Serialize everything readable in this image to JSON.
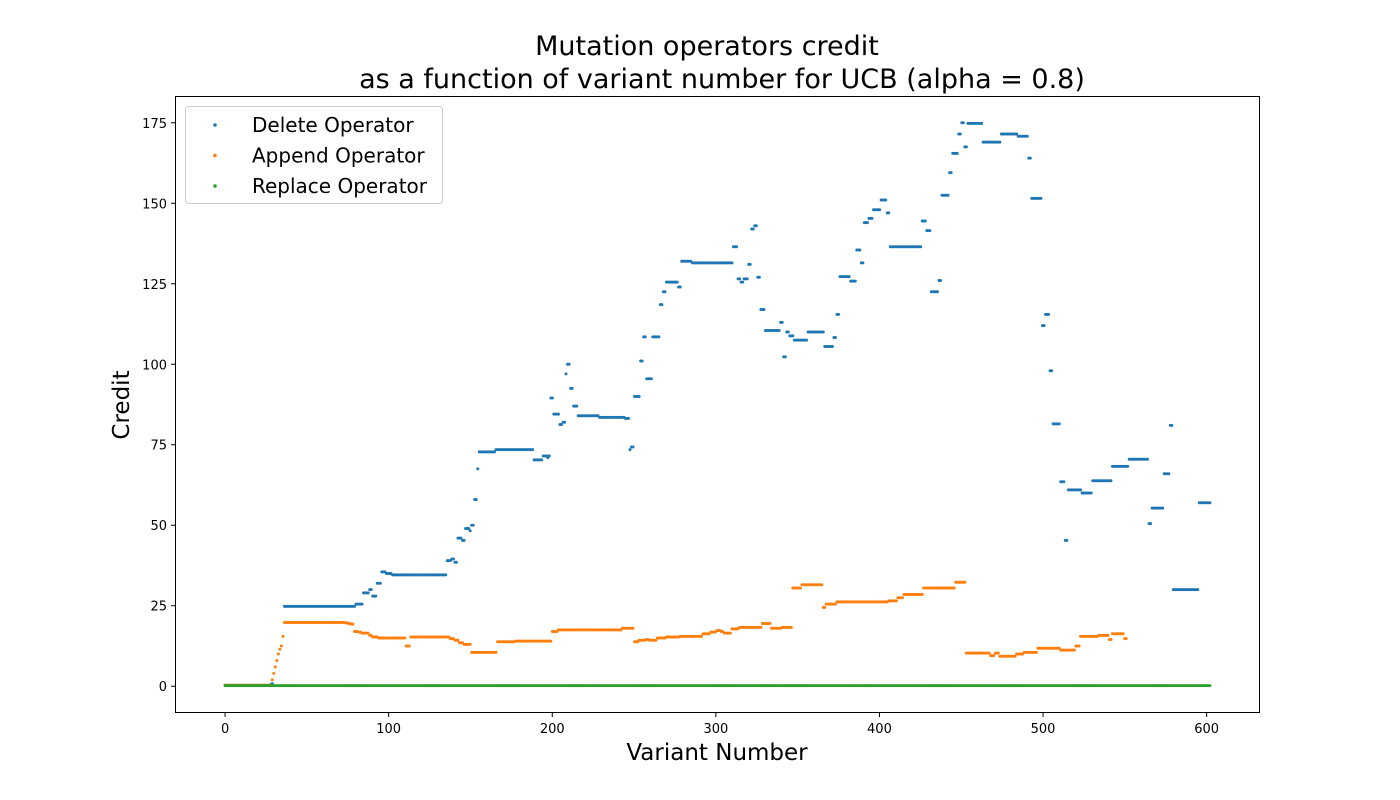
{
  "chart_data": {
    "type": "scatter",
    "title_line1": "Mutation operators credit",
    "title_line2": "as a function of variant number for UCB (alpha = 0.8)",
    "xlabel": "Variant Number",
    "ylabel": "Credit",
    "xlim": [
      -30,
      632
    ],
    "ylim": [
      -8,
      183
    ],
    "xticks": [
      0,
      100,
      200,
      300,
      400,
      500,
      600
    ],
    "yticks": [
      0,
      25,
      50,
      75,
      100,
      125,
      150,
      175
    ],
    "x_range": [
      0,
      602
    ],
    "grid": false,
    "legend_position": "top-left",
    "series": [
      {
        "name": "Delete Operator",
        "color": "#1f77b4",
        "segments": [
          [
            0,
            29,
            0.3
          ],
          [
            30,
            30,
            0.5
          ],
          [
            31,
            31,
            0.8
          ],
          [
            39,
            85,
            24.8
          ],
          [
            86,
            90,
            25.5
          ],
          [
            91,
            94,
            29
          ],
          [
            95,
            96,
            30
          ],
          [
            97,
            99,
            28
          ],
          [
            100,
            102,
            32
          ],
          [
            103,
            105,
            35.5
          ],
          [
            106,
            109,
            35
          ],
          [
            110,
            145,
            34.6
          ],
          [
            146,
            148,
            39
          ],
          [
            149,
            150,
            39.5
          ],
          [
            151,
            152,
            38.5
          ],
          [
            153,
            155,
            46
          ],
          [
            156,
            157,
            45.3
          ],
          [
            158,
            160,
            49
          ],
          [
            161,
            161,
            48.3
          ],
          [
            162,
            163,
            50
          ],
          [
            164,
            165,
            58
          ],
          [
            166,
            166,
            67.5
          ],
          [
            167,
            177,
            72.8
          ],
          [
            178,
            202,
            73.5
          ],
          [
            203,
            208,
            70.3
          ],
          [
            209,
            213,
            71.5
          ],
          [
            212,
            212,
            71
          ],
          [
            214,
            215,
            89.5
          ],
          [
            216,
            219,
            84.5
          ],
          [
            220,
            221,
            81.3
          ],
          [
            222,
            223,
            82
          ],
          [
            224,
            224,
            97
          ],
          [
            225,
            226,
            100
          ],
          [
            227,
            228,
            92.5
          ],
          [
            229,
            231,
            87
          ],
          [
            232,
            245,
            84
          ],
          [
            246,
            262,
            83.5
          ],
          [
            263,
            265,
            83.2
          ],
          [
            266,
            266,
            73.5
          ],
          [
            267,
            268,
            74.3
          ],
          [
            269,
            272,
            90
          ],
          [
            273,
            274,
            101
          ],
          [
            275,
            276,
            108.5
          ],
          [
            277,
            280,
            95.5
          ],
          [
            281,
            285,
            108.5
          ],
          [
            286,
            287,
            118.5
          ],
          [
            288,
            289,
            122.5
          ],
          [
            290,
            297,
            125.5
          ],
          [
            298,
            299,
            124
          ],
          [
            300,
            306,
            132
          ],
          [
            307,
            333,
            131.5
          ],
          [
            334,
            336,
            136.5
          ],
          [
            337,
            338,
            126.5
          ],
          [
            339,
            340,
            125.5
          ],
          [
            341,
            343,
            126.5
          ],
          [
            344,
            345,
            131
          ],
          [
            346,
            347,
            142
          ],
          [
            348,
            349,
            143
          ],
          [
            350,
            351,
            127
          ],
          [
            352,
            354,
            117
          ],
          [
            355,
            364,
            110.5
          ],
          [
            365,
            366,
            113
          ],
          [
            367,
            368,
            102.3
          ],
          [
            369,
            370,
            110
          ],
          [
            371,
            373,
            108.8
          ],
          [
            374,
            382,
            107.5
          ],
          [
            383,
            393,
            110
          ],
          [
            394,
            399,
            105.5
          ],
          [
            400,
            401,
            108.3
          ],
          [
            402,
            403,
            115.5
          ],
          [
            404,
            410,
            127.2
          ],
          [
            411,
            414,
            125.8
          ],
          [
            415,
            417,
            135.5
          ],
          [
            418,
            419,
            131.5
          ],
          [
            420,
            422,
            144
          ],
          [
            423,
            425,
            145.3
          ],
          [
            426,
            430,
            148
          ],
          [
            431,
            434,
            151
          ],
          [
            435,
            436,
            147
          ],
          [
            437,
            457,
            136.5
          ],
          [
            458,
            460,
            144.5
          ],
          [
            461,
            463,
            141.5
          ],
          [
            464,
            468,
            122.5
          ],
          [
            469,
            470,
            126
          ],
          [
            471,
            475,
            152.5
          ],
          [
            476,
            477,
            159.5
          ],
          [
            478,
            481,
            165.5
          ],
          [
            482,
            483,
            171.5
          ],
          [
            484,
            485,
            175
          ],
          [
            486,
            487,
            167.5
          ],
          [
            488,
            497,
            174.8
          ],
          [
            498,
            509,
            169
          ],
          [
            510,
            520,
            171.5
          ],
          [
            521,
            527,
            170.8
          ],
          [
            528,
            529,
            164
          ],
          [
            530,
            536,
            151.5
          ],
          [
            537,
            538,
            112
          ],
          [
            539,
            541,
            115.5
          ],
          [
            542,
            543,
            98
          ],
          [
            544,
            548,
            81.5
          ],
          [
            549,
            551,
            63.5
          ],
          [
            552,
            553,
            45.3
          ],
          [
            554,
            562,
            61
          ],
          [
            563,
            569,
            60
          ],
          [
            570,
            582,
            63.8
          ],
          [
            583,
            593,
            68.3
          ],
          [
            594,
            606,
            70.5
          ],
          [
            607,
            608,
            50.5
          ],
          [
            609,
            616,
            55.3
          ],
          [
            617,
            620,
            66
          ],
          [
            621,
            622,
            81
          ],
          [
            623,
            639,
            30
          ],
          [
            640,
            647,
            57
          ]
        ]
      },
      {
        "name": "Append Operator",
        "color": "#ff7f0e",
        "segments": [
          [
            0,
            30,
            0.3
          ],
          [
            31,
            31,
            2
          ],
          [
            32,
            32,
            4
          ],
          [
            33,
            33,
            6
          ],
          [
            34,
            34,
            8
          ],
          [
            35,
            35,
            10
          ],
          [
            36,
            36,
            11.5
          ],
          [
            37,
            37,
            12.5
          ],
          [
            38,
            38,
            15.5
          ],
          [
            39,
            78,
            19.8
          ],
          [
            79,
            80,
            19.7
          ],
          [
            81,
            82,
            19.5
          ],
          [
            83,
            84,
            19.3
          ],
          [
            85,
            87,
            17
          ],
          [
            88,
            89,
            16.8
          ],
          [
            90,
            94,
            16.5
          ],
          [
            95,
            96,
            15.8
          ],
          [
            97,
            100,
            15.3
          ],
          [
            101,
            118,
            15
          ],
          [
            119,
            121,
            12.5
          ],
          [
            122,
            147,
            15.3
          ],
          [
            148,
            150,
            14.8
          ],
          [
            151,
            153,
            14.3
          ],
          [
            154,
            156,
            13.5
          ],
          [
            157,
            161,
            13
          ],
          [
            162,
            178,
            10.5
          ],
          [
            179,
            190,
            13.8
          ],
          [
            191,
            214,
            14
          ],
          [
            215,
            218,
            17
          ],
          [
            219,
            260,
            17.5
          ],
          [
            261,
            268,
            18
          ],
          [
            269,
            271,
            13.8
          ],
          [
            272,
            276,
            14.3
          ],
          [
            277,
            278,
            14.5
          ],
          [
            279,
            283,
            14.3
          ],
          [
            284,
            289,
            15
          ],
          [
            290,
            298,
            15.3
          ],
          [
            299,
            313,
            15.5
          ],
          [
            314,
            318,
            16.3
          ],
          [
            319,
            322,
            16.8
          ],
          [
            323,
            325,
            17.3
          ],
          [
            326,
            327,
            17
          ],
          [
            328,
            332,
            16.5
          ],
          [
            333,
            337,
            17.8
          ],
          [
            338,
            352,
            18.3
          ],
          [
            353,
            358,
            19.5
          ],
          [
            359,
            365,
            18
          ],
          [
            366,
            372,
            18.3
          ],
          [
            373,
            378,
            30.5
          ],
          [
            379,
            392,
            31.5
          ],
          [
            393,
            394,
            24.5
          ],
          [
            395,
            401,
            25.5
          ],
          [
            402,
            435,
            26.2
          ],
          [
            436,
            441,
            26.5
          ],
          [
            442,
            445,
            27.5
          ],
          [
            446,
            458,
            28.5
          ],
          [
            459,
            479,
            30.5
          ],
          [
            480,
            486,
            32.3
          ],
          [
            487,
            502,
            10.3
          ],
          [
            503,
            505,
            9.5
          ],
          [
            506,
            508,
            10.3
          ],
          [
            509,
            519,
            9.3
          ],
          [
            520,
            524,
            10
          ],
          [
            525,
            533,
            10.5
          ],
          [
            534,
            548,
            11.8
          ],
          [
            549,
            558,
            11.2
          ],
          [
            559,
            561,
            12.5
          ],
          [
            562,
            563,
            15.5
          ],
          [
            564,
            573,
            15.5
          ],
          [
            574,
            580,
            15.8
          ],
          [
            581,
            582,
            14.5
          ],
          [
            583,
            590,
            16.3
          ],
          [
            591,
            592,
            14.8
          ]
        ]
      },
      {
        "name": "Replace Operator",
        "color": "#2ca02c",
        "segments": [
          [
            0,
            602,
            0.2
          ]
        ]
      }
    ]
  }
}
